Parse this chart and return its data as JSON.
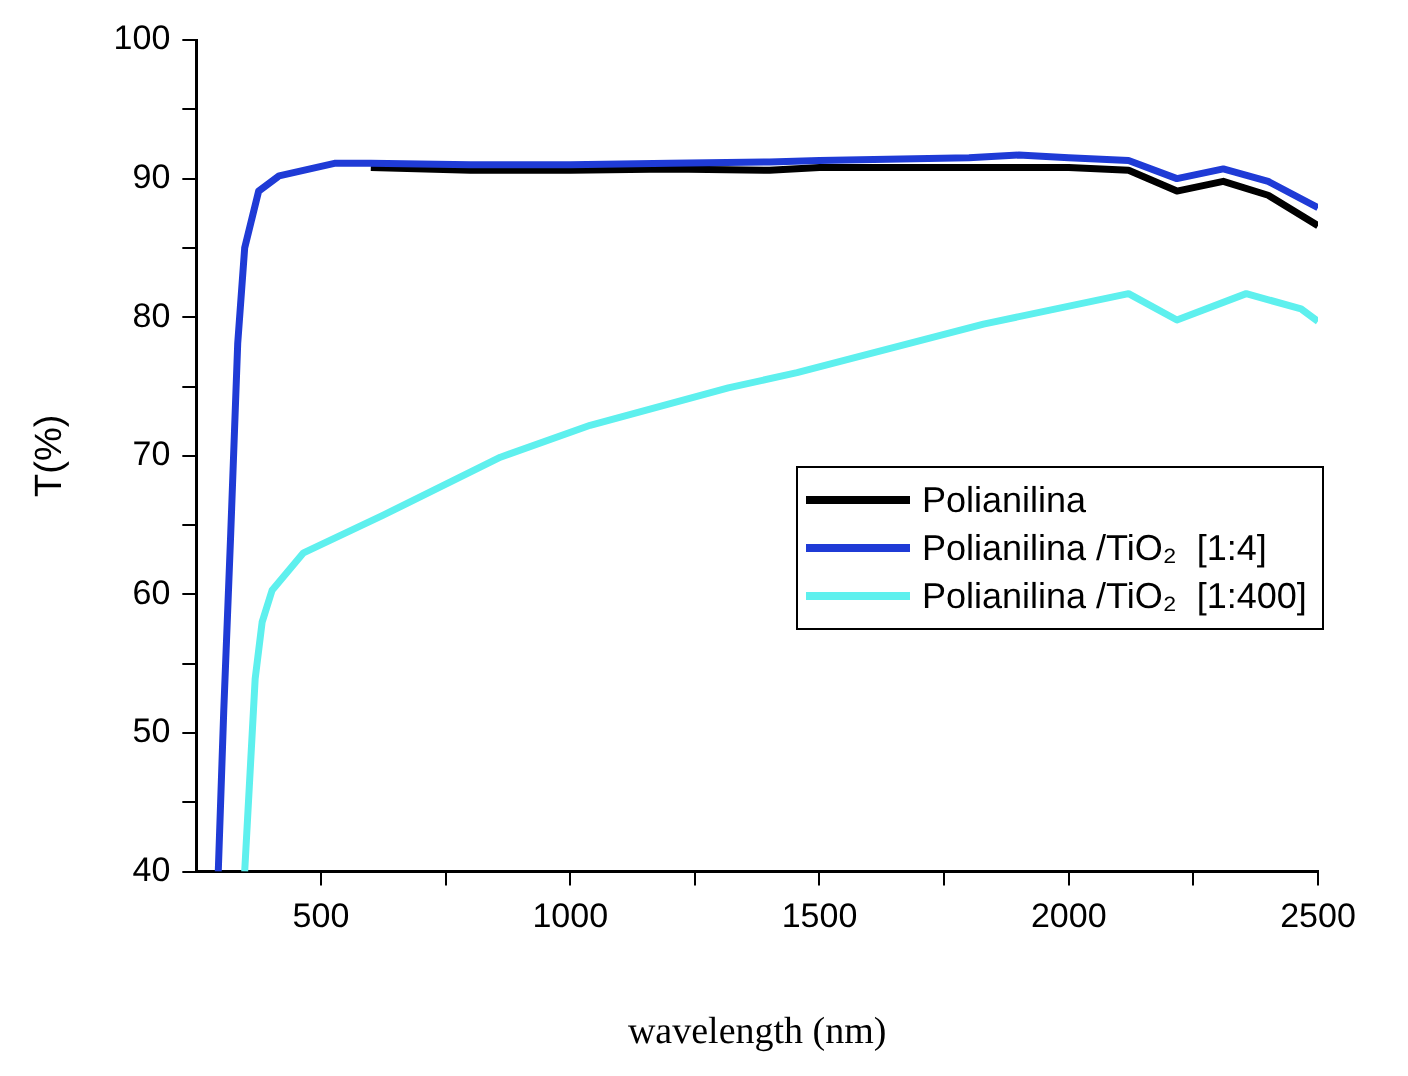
{
  "chart_data": {
    "type": "line",
    "xlabel": "wavelength (nm)",
    "ylabel": "T(%)",
    "xlim": [
      250,
      2500
    ],
    "ylim": [
      40,
      100
    ],
    "xticks": [
      500,
      {
        "value": 750,
        "label": null
      },
      1000,
      {
        "value": 1250,
        "label": null
      },
      1500,
      {
        "value": 1750,
        "label": null
      },
      2000,
      {
        "value": 2250,
        "label": null
      },
      2500
    ],
    "yticks": [
      40,
      {
        "value": 45,
        "label": null
      },
      50,
      {
        "value": 55,
        "label": null
      },
      60,
      {
        "value": 65,
        "label": null
      },
      70,
      {
        "value": 75,
        "label": null
      },
      80,
      {
        "value": 85,
        "label": null
      },
      90,
      {
        "value": 95,
        "label": null
      },
      100
    ],
    "grid": false,
    "legend": "right",
    "marker": "none",
    "line_style": "solid",
    "series": [
      {
        "name": "Polianilina",
        "color": "#000000",
        "x": [
          600,
          800,
          1000,
          1200,
          1400,
          1500,
          1800,
          2000,
          2120,
          2217,
          2310,
          2400,
          2500
        ],
        "values": [
          90.8,
          90.6,
          90.6,
          90.7,
          90.6,
          90.8,
          90.8,
          90.8,
          90.6,
          89.1,
          89.8,
          88.8,
          86.6
        ]
      },
      {
        "name": "Polianilina /TiO₂  [1:4]",
        "color": "#1f3bd6",
        "x": [
          294,
          305,
          319,
          333,
          347,
          375,
          416,
          527,
          600,
          800,
          1000,
          1200,
          1400,
          1500,
          1800,
          1900,
          2000,
          2120,
          2217,
          2310,
          2400,
          2500
        ],
        "values": [
          40,
          51.6,
          64.4,
          78.1,
          85,
          89.1,
          90.2,
          91.1,
          91.1,
          91,
          91,
          91.1,
          91.2,
          91.3,
          91.5,
          91.7,
          91.5,
          91.3,
          90,
          90.7,
          89.8,
          87.9
        ]
      },
      {
        "name": "Polianilina /TiO₂  [1:400]",
        "color": "#5ef0ee",
        "x": [
          347,
          368,
          382,
          402,
          465,
          624,
          860,
          1040,
          1317,
          1455,
          1829,
          2120,
          2217,
          2356,
          2466,
          2500
        ],
        "values": [
          40,
          53.9,
          58,
          60.3,
          63,
          65.7,
          69.9,
          72.2,
          74.9,
          76,
          79.5,
          81.7,
          79.8,
          81.7,
          80.6,
          79.7
        ]
      }
    ]
  }
}
